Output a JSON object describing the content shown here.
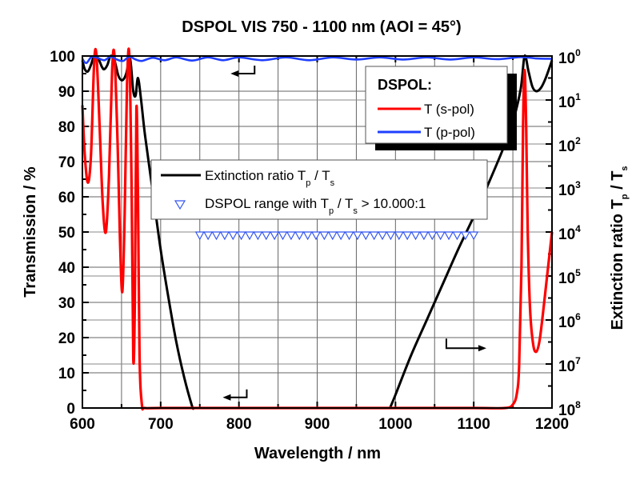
{
  "chart_data": {
    "type": "line",
    "title": "DSPOL VIS 750 - 1100 nm (AOI = 45°)",
    "xlabel": "Wavelength / nm",
    "ylabel": "Transmission / %",
    "y2label": {
      "main": "Extinction ratio T",
      "sub1": "p",
      "mid": " / T",
      "sub2": "s"
    },
    "xlim": [
      600,
      1200
    ],
    "ylim": [
      0,
      100
    ],
    "y2lim_log": [
      0,
      8
    ],
    "y2_inverted": true,
    "grid": true,
    "x_ticks": [
      600,
      700,
      800,
      900,
      1000,
      1100,
      1200
    ],
    "y_ticks": [
      0,
      10,
      20,
      30,
      40,
      50,
      60,
      70,
      80,
      90,
      100
    ],
    "y2_ticks": [
      {
        "base": "10",
        "exp": "0"
      },
      {
        "base": "10",
        "exp": "1"
      },
      {
        "base": "10",
        "exp": "2"
      },
      {
        "base": "10",
        "exp": "3"
      },
      {
        "base": "10",
        "exp": "4"
      },
      {
        "base": "10",
        "exp": "5"
      },
      {
        "base": "10",
        "exp": "6"
      },
      {
        "base": "10",
        "exp": "7"
      },
      {
        "base": "10",
        "exp": "8"
      }
    ],
    "legend1": {
      "placement": "top-right",
      "title": "DSPOL:",
      "entries": [
        {
          "label": "T (s-pol)",
          "color": "#ff0000"
        },
        {
          "label": "T (p-pol)",
          "color": "#1f3fff"
        }
      ]
    },
    "legend2": {
      "placement": "center-left",
      "entries": [
        {
          "label_main": "Extinction ratio T",
          "sub1": "p",
          "mid": " / T",
          "sub2": "s",
          "tail": "",
          "color": "#000000",
          "kind": "line"
        },
        {
          "label_main": "DSPOL range with T",
          "sub1": "p",
          "mid": " / T",
          "sub2": "s",
          "tail": " > 10.000:1",
          "color": "#3355ee",
          "kind": "marker"
        }
      ]
    },
    "series": [
      {
        "name": "T (s-pol)",
        "axis": "left",
        "color": "#ff0000",
        "x": [
          600,
          603,
          607,
          611,
          615,
          618,
          622,
          626,
          630,
          634,
          638,
          641,
          645,
          648,
          651,
          654,
          657,
          660,
          663,
          665,
          667,
          669,
          671,
          673,
          676,
          680,
          700,
          800,
          900,
          1000,
          1100,
          1140,
          1150,
          1155,
          1158,
          1161,
          1163,
          1165,
          1167,
          1169,
          1172,
          1176,
          1180,
          1184,
          1188,
          1192,
          1196,
          1200
        ],
        "values": [
          86,
          72,
          64,
          72,
          98,
          100,
          80,
          58,
          50,
          66,
          96,
          100,
          75,
          48,
          33,
          55,
          92,
          100,
          60,
          14,
          30,
          85,
          60,
          15,
          1,
          0,
          0,
          0,
          0,
          0,
          0,
          0,
          1,
          4,
          12,
          40,
          80,
          96,
          80,
          50,
          28,
          18,
          16,
          19,
          26,
          34,
          42,
          50
        ]
      },
      {
        "name": "T (p-pol)",
        "axis": "left",
        "color": "#1f3fff",
        "x": [
          600,
          605,
          612,
          620,
          628,
          636,
          644,
          652,
          660,
          668,
          676,
          690,
          705,
          720,
          740,
          760,
          780,
          800,
          830,
          860,
          890,
          920,
          950,
          980,
          1010,
          1040,
          1070,
          1100,
          1130,
          1160,
          1180,
          1200
        ],
        "values": [
          99.2,
          98.0,
          99.8,
          99.4,
          98.8,
          99.8,
          99.0,
          98.6,
          99.8,
          99.0,
          98.6,
          99.5,
          98.8,
          99.6,
          98.7,
          99.6,
          98.8,
          99.6,
          98.8,
          99.6,
          98.8,
          99.6,
          99.0,
          99.6,
          99.0,
          99.6,
          99.0,
          99.6,
          99.1,
          99.7,
          99.3,
          99.2
        ]
      },
      {
        "name": "Extinction ratio Tp / Ts",
        "axis": "right",
        "color": "#000000",
        "x": [
          600,
          603,
          607,
          611,
          615,
          620,
          625,
          628,
          632,
          636,
          641,
          646,
          651,
          656,
          660,
          662,
          665,
          668,
          671,
          675,
          680,
          690,
          700,
          710,
          720,
          730,
          740,
          742,
          993,
          1000,
          1020,
          1040,
          1060,
          1080,
          1100,
          1120,
          1140,
          1150,
          1160,
          1165,
          1170,
          1175,
          1180,
          1186,
          1192,
          1200
        ],
        "values_log10": [
          0.1,
          0.3,
          0.35,
          0.2,
          0.0,
          0.05,
          0.25,
          0.3,
          0.2,
          0.0,
          0.1,
          0.45,
          0.55,
          0.4,
          0.05,
          0.2,
          0.8,
          0.9,
          0.5,
          1.0,
          1.8,
          3.1,
          4.4,
          5.5,
          6.5,
          7.3,
          7.95,
          8.0,
          8.0,
          7.7,
          6.8,
          6.0,
          5.2,
          4.4,
          3.65,
          2.85,
          2.0,
          1.5,
          0.75,
          0.0,
          0.35,
          0.7,
          0.8,
          0.72,
          0.5,
          0.1
        ]
      },
      {
        "name": "DSPOL range with Tp / Ts > 10.000:1",
        "axis": "left",
        "type": "marker",
        "marker": "triangle-down-open",
        "color": "#3355ee",
        "x_range": [
          750,
          1100
        ],
        "count": 34,
        "value": 50
      }
    ],
    "annotations": [
      {
        "type": "arrow",
        "direction": "left",
        "meaning": "blue curve uses left axis",
        "x": 820,
        "y": 95
      },
      {
        "type": "arrow",
        "direction": "left",
        "meaning": "bottom arrow uses left axis",
        "x": 810,
        "y": 3
      },
      {
        "type": "arrow",
        "direction": "right",
        "meaning": "black curve uses right axis",
        "x": 1065,
        "y": 17
      }
    ]
  }
}
